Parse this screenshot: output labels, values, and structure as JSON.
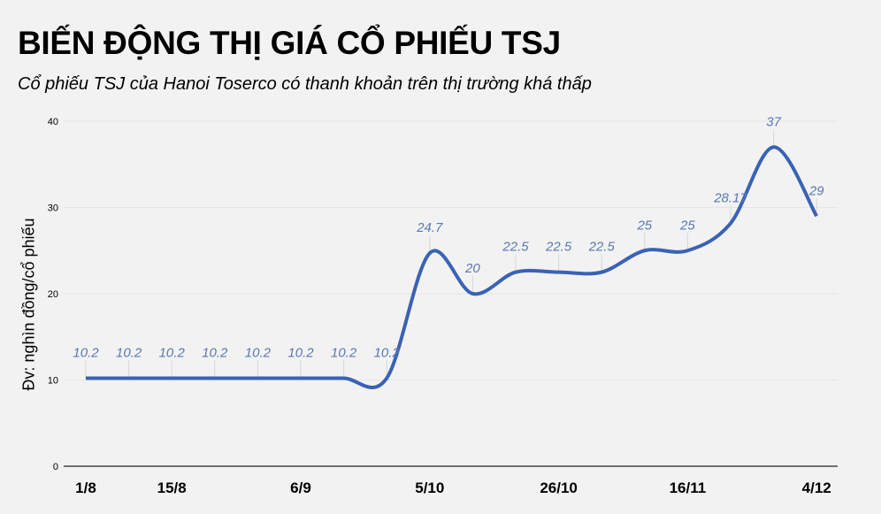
{
  "header": {
    "title": "BIẾN ĐỘNG THỊ GIÁ CỔ PHIẾU TSJ",
    "subtitle": "Cổ phiếu TSJ của Hanoi Toserco có thanh khoản trên thị trường khá thấp"
  },
  "colors": {
    "background": "#f2f2f2",
    "line": "#3a62b5",
    "data_label": "#5a78b4",
    "gridline": "#e6e6e6",
    "axis": "#222222"
  },
  "chart_data": {
    "type": "line",
    "title": "BIẾN ĐỘNG THỊ GIÁ CỔ PHIẾU TSJ",
    "subtitle": "Cổ phiếu TSJ của Hanoi Toserco có thanh khoản trên thị trường khá thấp",
    "xlabel": "",
    "ylabel": "Đv: nghìn đồng/cổ phiếu",
    "ylim": [
      0,
      40
    ],
    "yticks": [
      0,
      10,
      20,
      30,
      40
    ],
    "grid": true,
    "legend": null,
    "x_tick_labels": [
      {
        "index": 0,
        "label": "1/8"
      },
      {
        "index": 2,
        "label": "15/8"
      },
      {
        "index": 5,
        "label": "6/9"
      },
      {
        "index": 8,
        "label": "5/10"
      },
      {
        "index": 11,
        "label": "26/10"
      },
      {
        "index": 14,
        "label": "16/11"
      },
      {
        "index": 17,
        "label": "4/12"
      }
    ],
    "series": [
      {
        "name": "TSJ",
        "values": [
          10.2,
          10.2,
          10.2,
          10.2,
          10.2,
          10.2,
          10.2,
          10.2,
          24.7,
          20,
          22.5,
          22.5,
          22.5,
          25,
          25,
          28.17,
          37,
          29
        ],
        "labels": [
          "10.2",
          "10.2",
          "10.2",
          "10.2",
          "10.2",
          "10.2",
          "10.2",
          "10.2",
          "24.7",
          "20",
          "22.5",
          "22.5",
          "22.5",
          "25",
          "25",
          "28.17",
          "37",
          "29"
        ]
      }
    ]
  }
}
